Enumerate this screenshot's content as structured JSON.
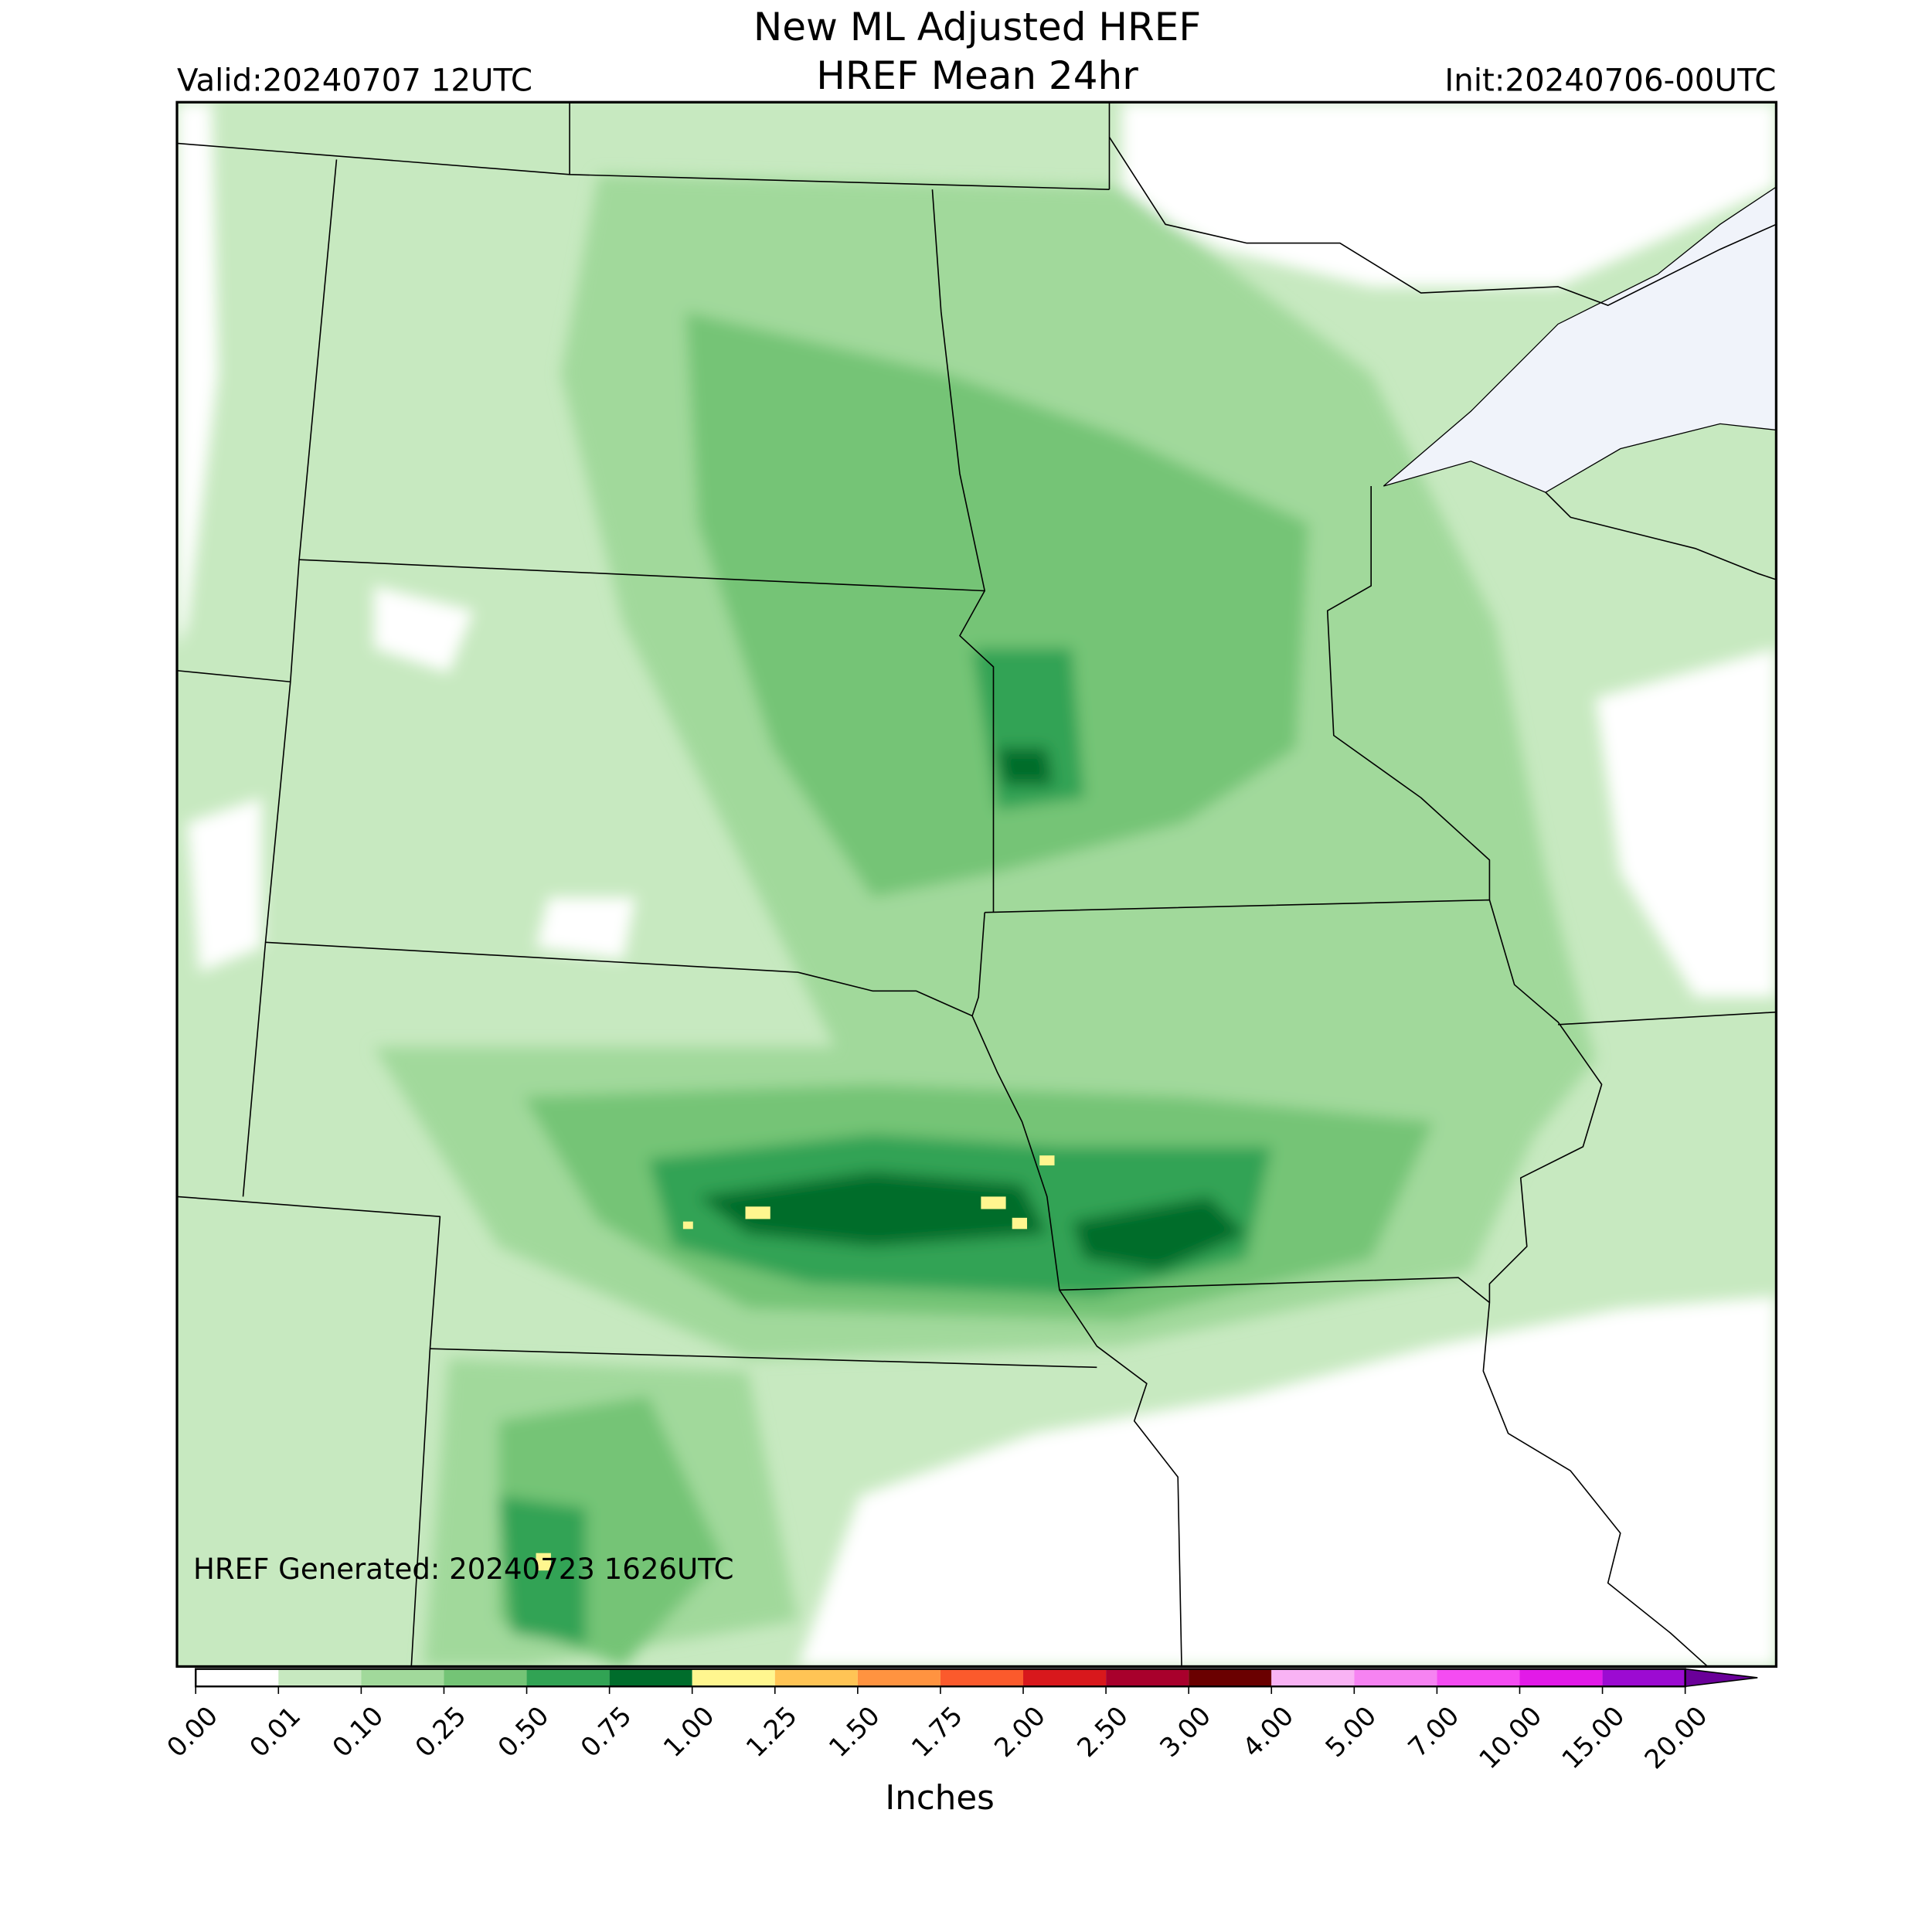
{
  "header": {
    "title_lines": [
      "New ML Adjusted HREF",
      "HREF Mean 24hr"
    ],
    "valid": "Valid:20240707 12UTC",
    "init": "Init:20240706-00UTC"
  },
  "map": {
    "generated": "HREF Generated: 20240723 1626UTC"
  },
  "colorbar": {
    "label": "Inches",
    "levels": [
      "0.00",
      "0.01",
      "0.10",
      "0.25",
      "0.50",
      "0.75",
      "1.00",
      "1.25",
      "1.50",
      "1.75",
      "2.00",
      "2.50",
      "3.00",
      "4.00",
      "5.00",
      "7.00",
      "10.00",
      "15.00",
      "20.00"
    ],
    "colors": [
      "#ffffff",
      "#c7e9c0",
      "#a1d99b",
      "#74c476",
      "#31a354",
      "#006d2c",
      "#fff68f",
      "#ffc455",
      "#ff9340",
      "#fb5a2c",
      "#d8181c",
      "#a8002c",
      "#6a0000",
      "#f9b3f4",
      "#f683f2",
      "#f44cf2",
      "#e21ae8",
      "#9c0bd2"
    ],
    "extend_color": "#6a0099"
  }
}
